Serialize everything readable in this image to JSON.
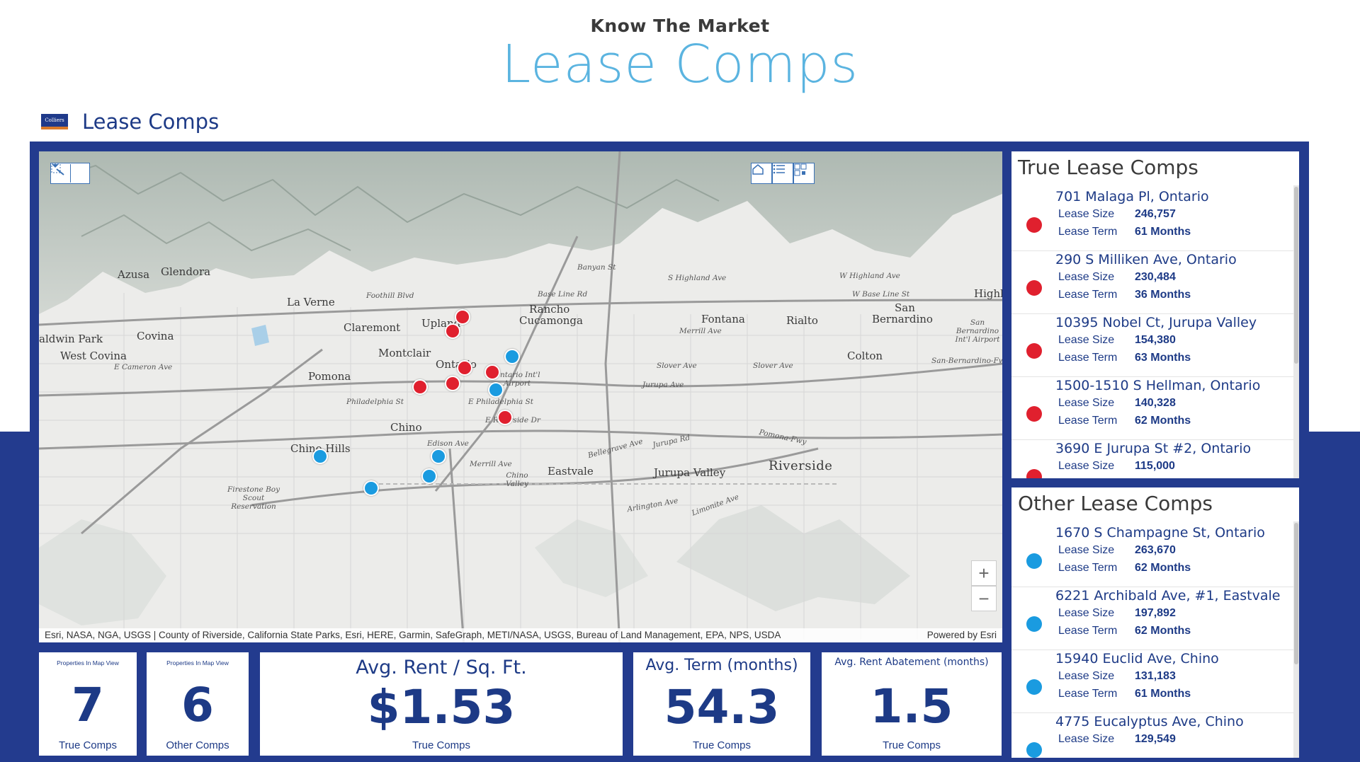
{
  "hero": {
    "subtitle": "Know The Market",
    "title": "Lease Comps"
  },
  "app": {
    "logo_text": "Colliers",
    "title": "Lease Comps"
  },
  "map": {
    "attribution": "Esri, NASA, NGA, USGS | County of Riverside, California State Parks, Esri, HERE, Garmin, SafeGraph, METI/NASA, USGS, Bureau of Land Management, EPA, NPS, USDA",
    "powered_by": "Powered by Esri",
    "zoom_in": "+",
    "zoom_out": "−",
    "places": {
      "azusa": "Azusa",
      "glendora": "Glendora",
      "la_verne": "La Verne",
      "claremont": "Claremont",
      "upland": "Upland",
      "rancho_1": "Rancho",
      "rancho_2": "Cucamonga",
      "fontana": "Fontana",
      "rialto": "Rialto",
      "san_bernardino_1": "San",
      "san_bernardino_2": "Bernardino",
      "highland": "Highl",
      "baldwin_park": "aldwin Park",
      "covina": "Covina",
      "west_covina": "West Covina",
      "montclair": "Montclair",
      "ontario": "Ontario",
      "pomona": "Pomona",
      "colton": "Colton",
      "chino": "Chino",
      "chino_hills": "Chino Hills",
      "eastvale": "Eastvale",
      "jurupa_valley": "Jurupa Valley",
      "riverside": "Riverside",
      "ontario_airport": "Ontario Int'l Airport",
      "sb_airport": "San Bernardino Int'l Airport",
      "firestone": "Firestone Boy Scout Reservation",
      "chino_valley": "Chino Valley"
    },
    "roads": {
      "banyan": "Banyan St",
      "base_line": "Base Line Rd",
      "foothill": "Foothill Blvd",
      "highland_ave": "S Highland Ave",
      "w_highland": "W Highland Ave",
      "w_base_line": "W Base Line St",
      "merrill": "Merrill Ave",
      "slover": "Slover Ave",
      "slover2": "Slover Ave",
      "jurupa": "Jurupa Ave",
      "philadelphia": "Philadelphia St",
      "e_philadelphia": "E Philadelphia St",
      "riverside_dr": "E Riverside Dr",
      "edison": "Edison Ave",
      "merrill2": "Merrill Ave",
      "cameron": "E Cameron Ave",
      "sb_fwy": "San-Bernardino-Fwy",
      "pomona_fwy": "Pomona-Fwy",
      "bellegrave": "Bellegrave Ave",
      "jurupa_rd": "Jurupa Rd",
      "limonite": "Limonite Ave",
      "arlington": "Arlington Ave"
    }
  },
  "true_comps": {
    "title": "True Lease Comps",
    "size_label": "Lease Size",
    "term_label": "Lease Term",
    "items": [
      {
        "name": "701 Malaga Pl, Ontario",
        "size": "246,757",
        "term": "61 Months"
      },
      {
        "name": "290 S Milliken Ave, Ontario",
        "size": "230,484",
        "term": "36 Months"
      },
      {
        "name": "10395 Nobel Ct, Jurupa Valley",
        "size": "154,380",
        "term": "63 Months"
      },
      {
        "name": "1500-1510 S Hellman, Ontario",
        "size": "140,328",
        "term": "62 Months"
      },
      {
        "name": "3690 E Jurupa St #2, Ontario",
        "size": "115,000",
        "term": ""
      }
    ]
  },
  "other_comps": {
    "title": "Other Lease Comps",
    "size_label": "Lease Size",
    "term_label": "Lease Term",
    "items": [
      {
        "name": "1670 S Champagne St, Ontario",
        "size": "263,670",
        "term": "62 Months"
      },
      {
        "name": "6221 Archibald Ave, #1, Eastvale",
        "size": "197,892",
        "term": "62 Months"
      },
      {
        "name": "15940 Euclid Ave, Chino",
        "size": "131,183",
        "term": "61 Months"
      },
      {
        "name": "4775 Eucalyptus Ave, Chino",
        "size": "129,549",
        "term": ""
      }
    ]
  },
  "stats": {
    "true_count": {
      "tiny": "Properties In Map View",
      "value": "7",
      "foot": "True Comps"
    },
    "other_count": {
      "tiny": "Properties In Map View",
      "value": "6",
      "foot": "Other Comps"
    },
    "avg_rent": {
      "head": "Avg. Rent / Sq. Ft.",
      "value": "$1.53",
      "foot": "True Comps"
    },
    "avg_term": {
      "head": "Avg. Term (months)",
      "value": "54.3",
      "foot": "True Comps"
    },
    "avg_abatement": {
      "head": "Avg. Rent Abatement (months)",
      "value": "1.5",
      "foot": "True Comps"
    }
  },
  "colors": {
    "true": "#e0202e",
    "other": "#1a9be0",
    "navy": "#233b8e",
    "accent": "#5bb4e0"
  }
}
